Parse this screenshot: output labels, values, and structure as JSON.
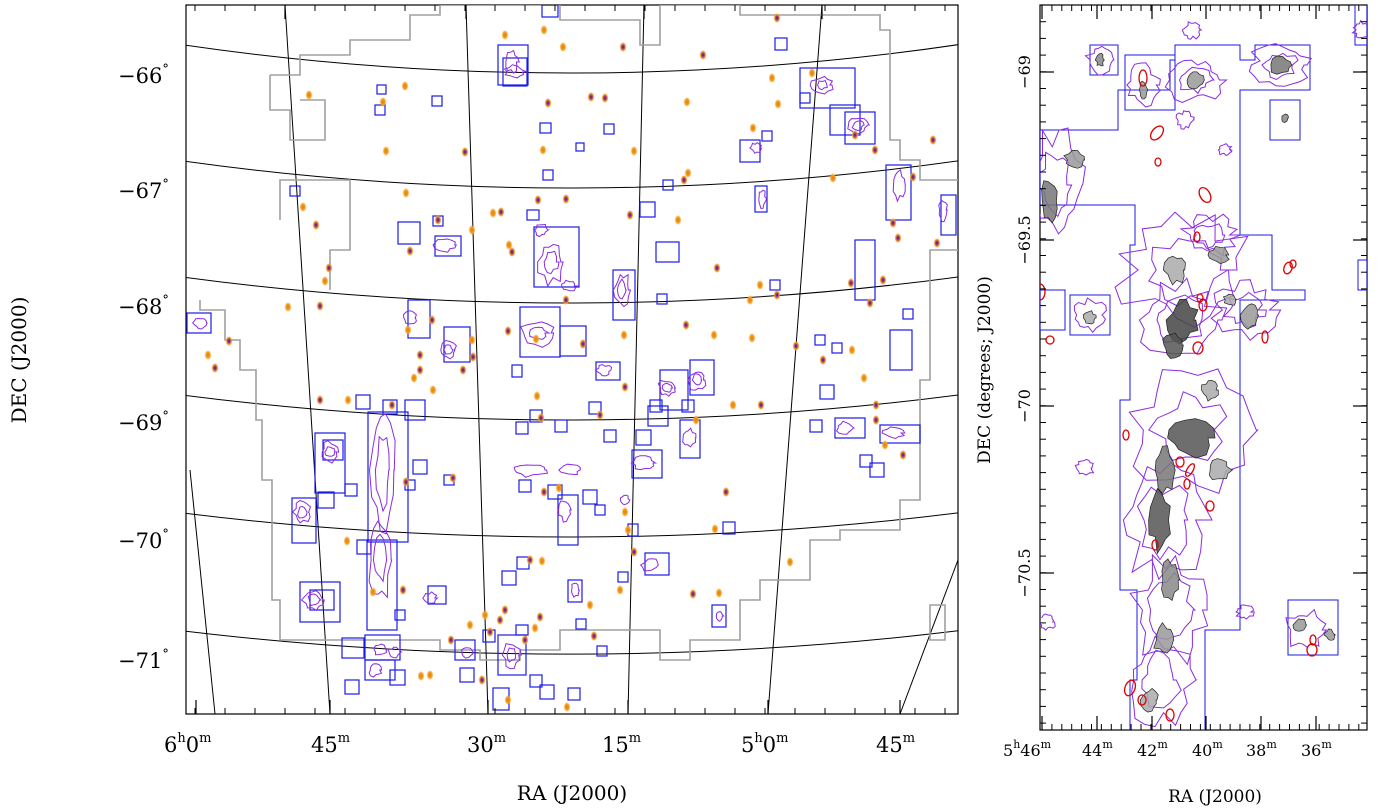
{
  "chart_data": [
    {
      "type": "sky-map",
      "panel": "left",
      "xlabel": "RA (J2000)",
      "ylabel": "DEC (J2000)",
      "x_ticks": [
        {
          "main": "6",
          "unit1": "h",
          "sub": "0",
          "unit2": "m"
        },
        {
          "main": "45",
          "unit1": "m",
          "sub": "",
          "unit2": ""
        },
        {
          "main": "30",
          "unit1": "m",
          "sub": "",
          "unit2": ""
        },
        {
          "main": "15",
          "unit1": "m",
          "sub": "",
          "unit2": ""
        },
        {
          "main": "5",
          "unit1": "h",
          "sub": "0",
          "unit2": "m"
        },
        {
          "main": "45",
          "unit1": "m",
          "sub": "",
          "unit2": ""
        }
      ],
      "y_ticks": [
        {
          "value": -66,
          "text": "−66",
          "unit": "°"
        },
        {
          "value": -67,
          "text": "−67",
          "unit": "°"
        },
        {
          "value": -68,
          "text": "−68",
          "unit": "°"
        },
        {
          "value": -69,
          "text": "−69",
          "unit": "°"
        },
        {
          "value": -70,
          "text": "−70",
          "unit": "°"
        },
        {
          "value": -71,
          "text": "−71",
          "unit": "°"
        }
      ],
      "grid": true,
      "colors": {
        "survey_outline": "#a0a0a0",
        "field_boxes": "#1a1ae6",
        "contours": "#8a2be2",
        "sources": "#f5a020",
        "source_core": "#3a1a70",
        "grid": "#000000"
      }
    },
    {
      "type": "sky-map",
      "panel": "right",
      "xlabel": "RA (J2000)",
      "ylabel": "DEC (degrees; J2000)",
      "x_ticks": [
        {
          "main": "5",
          "unit1": "h",
          "sub": "46",
          "unit2": "m"
        },
        {
          "main": "44",
          "unit1": "m",
          "sub": "",
          "unit2": ""
        },
        {
          "main": "42",
          "unit1": "m",
          "sub": "",
          "unit2": ""
        },
        {
          "main": "40",
          "unit1": "m",
          "sub": "",
          "unit2": ""
        },
        {
          "main": "38",
          "unit1": "m",
          "sub": "",
          "unit2": ""
        },
        {
          "main": "36",
          "unit1": "m",
          "sub": "",
          "unit2": ""
        }
      ],
      "y_ticks": [
        {
          "value": -69,
          "text": "−69"
        },
        {
          "value": -69.5,
          "text": "−69.5"
        },
        {
          "value": -70,
          "text": "−70"
        },
        {
          "value": -70.5,
          "text": "−70.5"
        }
      ],
      "y_range": [
        -70.95,
        -68.8
      ],
      "colors": {
        "field_boxes": "#1a1ae6",
        "contours": "#8a2be2",
        "ellipses": "#dd0000",
        "emission": "#777777"
      }
    }
  ]
}
